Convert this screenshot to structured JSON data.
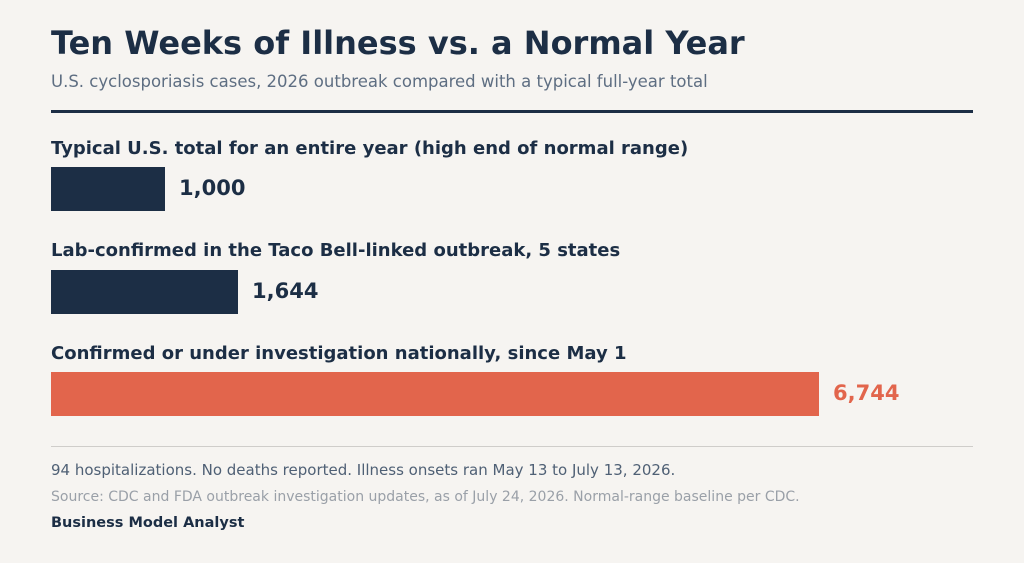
{
  "chart_data": {
    "type": "bar",
    "orientation": "horizontal",
    "title": "Ten Weeks of Illness vs. a Normal Year",
    "subtitle": "U.S. cyclosporiasis cases, 2026 outbreak compared with a typical full-year total",
    "categories": [
      "Typical U.S. total for an entire year (high end of normal range)",
      "Lab-confirmed in the Taco Bell-linked outbreak, 5 states",
      "Confirmed or under investigation nationally, since May 1"
    ],
    "values": [
      1000,
      1644,
      6744
    ],
    "value_labels": [
      "1,000",
      "1,644",
      "6,744"
    ],
    "colors": [
      "#1c2e45",
      "#1c2e45",
      "#e2654c"
    ],
    "xlim": [
      0,
      6744
    ],
    "grid": false
  },
  "footer": {
    "note": "94 hospitalizations. No deaths reported. Illness onsets ran May 13 to July 13, 2026.",
    "source": "Source: CDC and FDA outbreak investigation updates, as of July 24, 2026. Normal-range baseline per CDC.",
    "brand": "Business Model Analyst"
  }
}
